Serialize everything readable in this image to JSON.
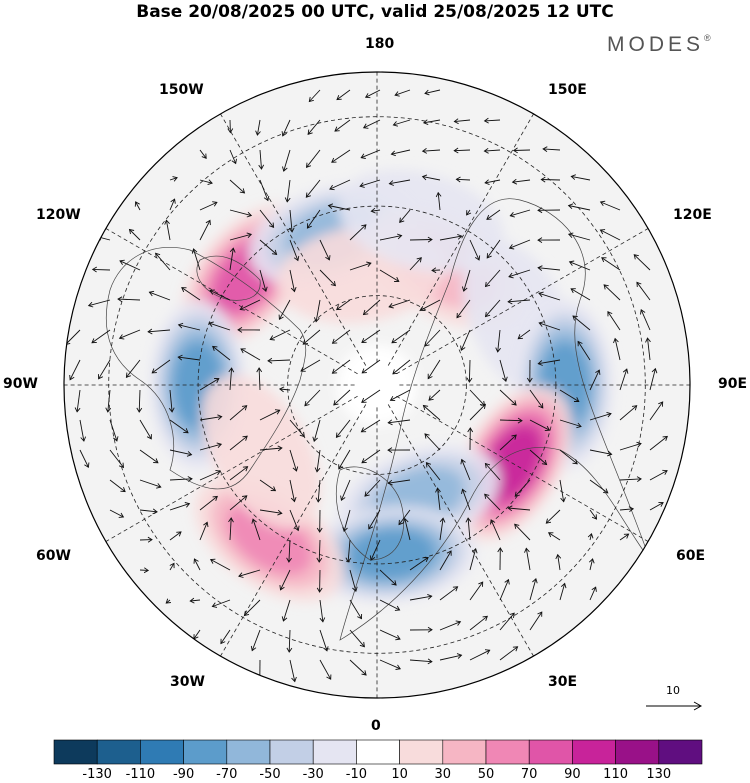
{
  "title": "Base 20/08/2025 00 UTC, valid 25/08/2025 12 UTC",
  "brand": "MODES",
  "brand_mark": "®",
  "longitude_labels": {
    "top": "180",
    "bottom": "0",
    "left": "90W",
    "right": "90E",
    "upper_left_1": "150W",
    "upper_left_2": "120W",
    "upper_right_1": "150E",
    "upper_right_2": "120E",
    "lower_left_1": "60W",
    "lower_left_2": "30W",
    "lower_right_1": "60E",
    "lower_right_2": "30E"
  },
  "reference_vector": {
    "label": "10"
  },
  "colorbar": {
    "colors": [
      "#0d3a5c",
      "#1d5f8e",
      "#2f7bb4",
      "#5c9ccb",
      "#91b7da",
      "#c2cfe6",
      "#e5e5f2",
      "#ffffff",
      "#f8dcdc",
      "#f6b6c4",
      "#f087b5",
      "#e055a8",
      "#c8239a",
      "#991188",
      "#600e80"
    ],
    "tick_labels": [
      "-130",
      "-110",
      "-90",
      "-70",
      "-50",
      "-30",
      "-10",
      "10",
      "30",
      "50",
      "70",
      "90",
      "110",
      "130"
    ]
  },
  "anomaly_centers": [
    {
      "lon": -130,
      "lat": 52,
      "value": 95
    },
    {
      "lon": -90,
      "lat": 50,
      "value": -95
    },
    {
      "lon": -163,
      "lat": 55,
      "value": -60
    },
    {
      "lon": 150,
      "lat": 60,
      "value": 45
    },
    {
      "lon": 115,
      "lat": 55,
      "value": -35
    },
    {
      "lon": 90,
      "lat": 48,
      "value": -85
    },
    {
      "lon": 60,
      "lat": 55,
      "value": 100
    },
    {
      "lon": 20,
      "lat": 63,
      "value": -65
    },
    {
      "lon": 5,
      "lat": 52,
      "value": -90
    },
    {
      "lon": -35,
      "lat": 48,
      "value": 65
    },
    {
      "lon": -60,
      "lat": 60,
      "value": 30
    },
    {
      "lon": -172,
      "lat": 65,
      "value": 25
    },
    {
      "lon": 165,
      "lat": 52,
      "value": -25
    }
  ]
}
